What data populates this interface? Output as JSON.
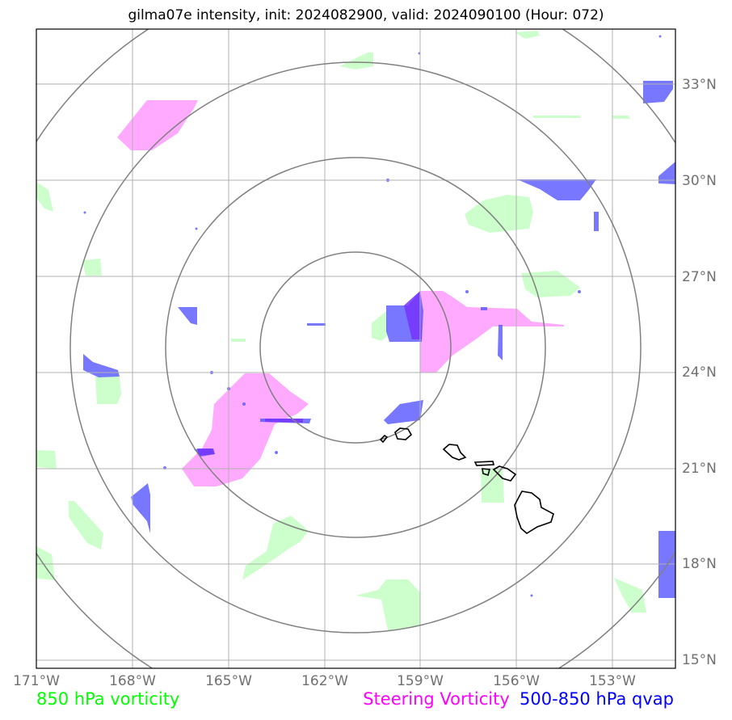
{
  "title": "gilma07e intensity, init: 2024082900, valid: 2024090100 (Hour: 072)",
  "x_ticks": [
    "171°W",
    "168°W",
    "165°W",
    "162°W",
    "159°W",
    "156°W",
    "153°W"
  ],
  "y_ticks": [
    "33°N",
    "30°N",
    "27°N",
    "24°N",
    "21°N",
    "18°N",
    "15°N"
  ],
  "legend": {
    "vort850": {
      "label": "850 hPa vorticity",
      "color": "#00ff00"
    },
    "steering": {
      "label": "Steering Vorticity",
      "color": "#ff00ff"
    },
    "qvap": {
      "label": "500-850 hPa qvap",
      "color": "#0000ff"
    }
  },
  "colors": {
    "vort850_fill": "#ccffcc",
    "steering_fill": "#ffaaff",
    "qvap_fill": "#5555ff",
    "grid": "#b0b0b0",
    "range_rings": "#808080",
    "coastline": "#000000"
  },
  "map": {
    "center": {
      "lon": -161,
      "lat": 24.5
    },
    "extent": {
      "lon": [
        -171,
        -151
      ],
      "lat": [
        14.8,
        34.8
      ]
    },
    "gridlines": {
      "lon": [
        -171,
        -168,
        -165,
        -162,
        -159,
        -156,
        -153
      ],
      "lat": [
        33,
        30,
        27,
        24,
        21,
        18,
        15
      ]
    },
    "range_rings": 4,
    "features": [
      "Hawaiian Islands coastline"
    ]
  }
}
